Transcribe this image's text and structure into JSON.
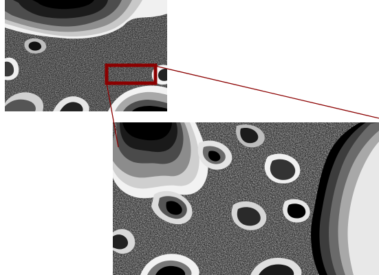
{
  "figure": {
    "overview_image": "fractal-overview",
    "zoomed_image": "fractal-zoomed-detail",
    "highlight_color": "#8b0000",
    "connector_color": "#8b0000",
    "palette": [
      "#000000",
      "#262626",
      "#4d4d4d",
      "#7a7a7a",
      "#a8a8a8",
      "#d0d0d0",
      "#f2f2f2"
    ]
  }
}
